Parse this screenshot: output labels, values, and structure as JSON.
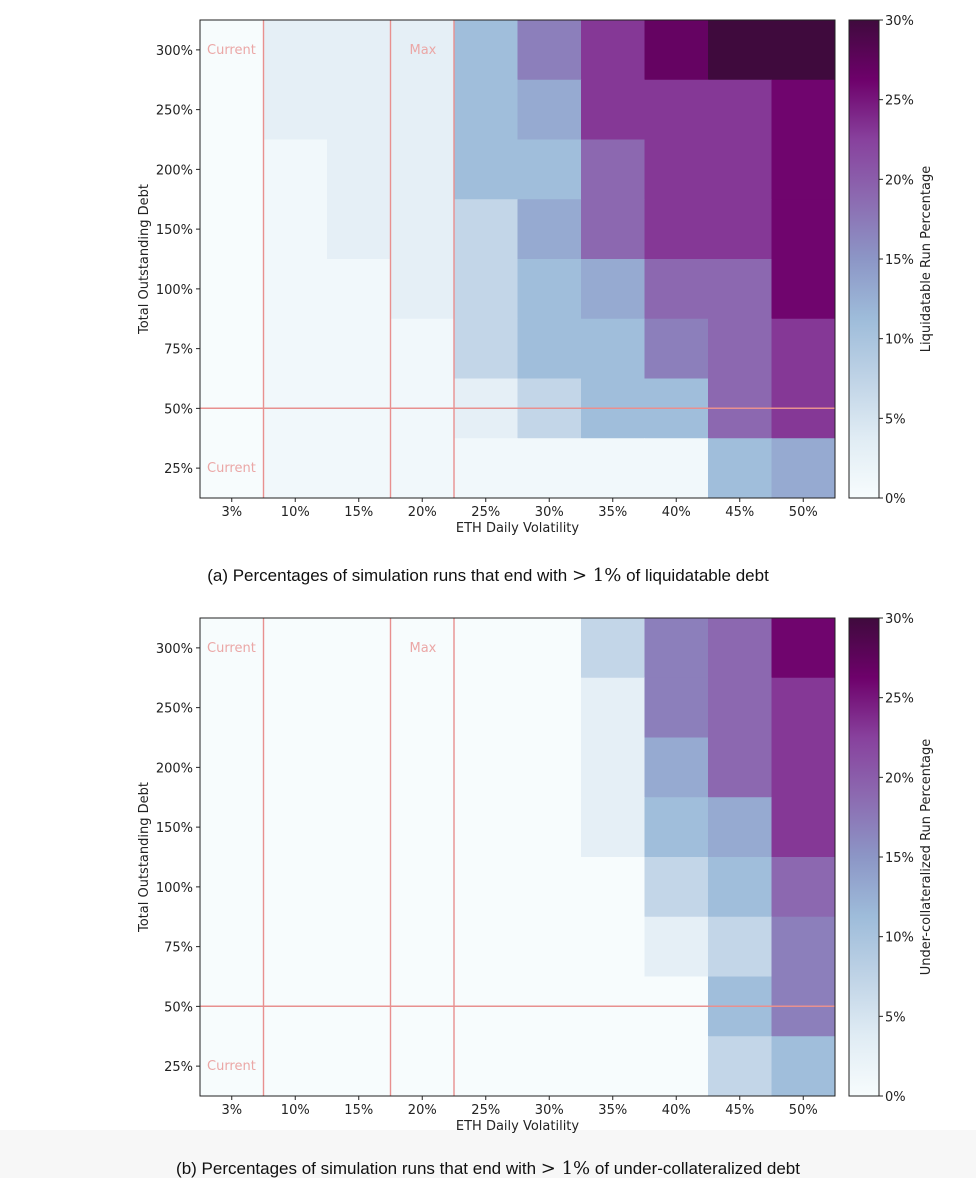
{
  "chart_data": [
    {
      "type": "heatmap",
      "xlabel": "ETH Daily Volatility",
      "ylabel": "Total Outstanding Debt",
      "x_categories": [
        "3%",
        "10%",
        "15%",
        "20%",
        "25%",
        "30%",
        "35%",
        "40%",
        "45%",
        "50%"
      ],
      "y_categories": [
        "300%",
        "250%",
        "200%",
        "150%",
        "100%",
        "75%",
        "50%",
        "25%"
      ],
      "values": [
        [
          0,
          3,
          3,
          3,
          11,
          17,
          23,
          27,
          30,
          33
        ],
        [
          0,
          3,
          3,
          3,
          11,
          13,
          23,
          23,
          23,
          26
        ],
        [
          0,
          1,
          3,
          3,
          11,
          11,
          19,
          23,
          23,
          26
        ],
        [
          0,
          1,
          3,
          3,
          7,
          13,
          19,
          23,
          23,
          26
        ],
        [
          0,
          1,
          1,
          3,
          7,
          11,
          13,
          19,
          19,
          26
        ],
        [
          0,
          1,
          1,
          1,
          7,
          11,
          11,
          17,
          19,
          23
        ],
        [
          0,
          1,
          1,
          1,
          3,
          7,
          11,
          11,
          19,
          23
        ],
        [
          0,
          1,
          1,
          1,
          1,
          1,
          1,
          1,
          11,
          13
        ]
      ],
      "colorbar": {
        "label": "Liquidatable Run Percentage",
        "min": 0,
        "max": 30,
        "ticks": [
          "0%",
          "5%",
          "10%",
          "15%",
          "20%",
          "25%",
          "30%"
        ]
      },
      "reference_lines": {
        "vertical": [
          {
            "label": "Current"
          },
          {
            "label": "Max"
          }
        ],
        "horizontal": [
          {
            "label": "Current"
          }
        ]
      },
      "caption_prefix": "(a) Percentages of simulation runs that end with",
      "caption_math": "> 1%",
      "caption_suffix": "of liquidatable debt"
    },
    {
      "type": "heatmap",
      "xlabel": "ETH Daily Volatility",
      "ylabel": "Total Outstanding Debt",
      "x_categories": [
        "3%",
        "10%",
        "15%",
        "20%",
        "25%",
        "30%",
        "35%",
        "40%",
        "45%",
        "50%"
      ],
      "y_categories": [
        "300%",
        "250%",
        "200%",
        "150%",
        "100%",
        "75%",
        "50%",
        "25%"
      ],
      "values": [
        [
          0,
          0,
          0,
          0,
          0,
          0,
          7,
          17,
          19,
          26
        ],
        [
          0,
          0,
          0,
          0,
          0,
          0,
          3,
          17,
          19,
          23
        ],
        [
          0,
          0,
          0,
          0,
          0,
          0,
          3,
          13,
          19,
          23
        ],
        [
          0,
          0,
          0,
          0,
          0,
          0,
          3,
          11,
          13,
          23
        ],
        [
          0,
          0,
          0,
          0,
          0,
          0,
          0,
          7,
          11,
          19
        ],
        [
          0,
          0,
          0,
          0,
          0,
          0,
          0,
          3,
          7,
          17
        ],
        [
          0,
          0,
          0,
          0,
          0,
          0,
          0,
          0,
          11,
          17
        ],
        [
          0,
          0,
          0,
          0,
          0,
          0,
          0,
          0,
          7,
          11
        ]
      ],
      "colorbar": {
        "label": "Under-collateralized Run Percentage",
        "min": 0,
        "max": 30,
        "ticks": [
          "0%",
          "5%",
          "10%",
          "15%",
          "20%",
          "25%",
          "30%"
        ]
      },
      "reference_lines": {
        "vertical": [
          {
            "label": "Current"
          },
          {
            "label": "Max"
          }
        ],
        "horizontal": [
          {
            "label": "Current"
          }
        ]
      },
      "caption_prefix": "(b) Percentages of simulation runs that end with",
      "caption_math": "> 1%",
      "caption_suffix": "of under-collateralized debt"
    }
  ],
  "colors": {
    "reference_line": "#e8908f",
    "reference_label": "#eba7a6",
    "colormap": [
      "#f7fcfd",
      "#e0ecf4",
      "#bfd3e6",
      "#9ebcda",
      "#8c96c6",
      "#8c6bb1",
      "#88419d",
      "#6e016b",
      "#3f0a3d"
    ]
  }
}
